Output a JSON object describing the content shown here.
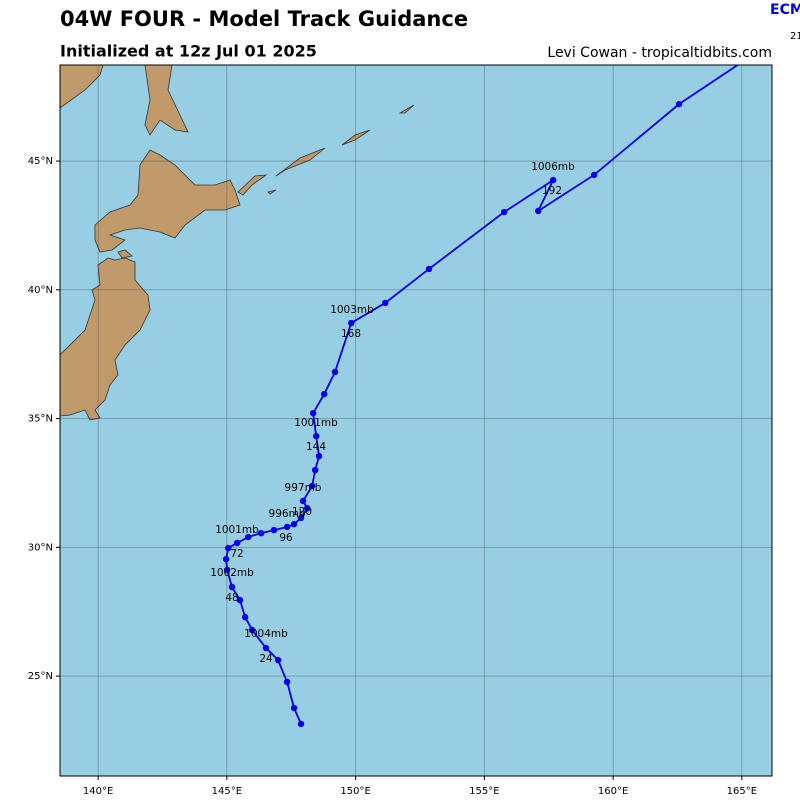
{
  "chart_data": {
    "type": "line",
    "title": "04W FOUR - Model Track Guidance",
    "subtitle": "Initialized at 12z Jul 01 2025",
    "credit": "Levi Cowan - tropicaltidbits.com",
    "model": "ECM",
    "model_note": "21",
    "xlim": [
      138.52,
      166.17
    ],
    "ylim": [
      21.12,
      48.73
    ],
    "xticks": [
      {
        "value": 140,
        "label": "140°E"
      },
      {
        "value": 145,
        "label": "145°E"
      },
      {
        "value": 150,
        "label": "150°E"
      },
      {
        "value": 155,
        "label": "155°E"
      },
      {
        "value": 160,
        "label": "160°E"
      },
      {
        "value": 165,
        "label": "165°E"
      }
    ],
    "yticks": [
      {
        "value": 25,
        "label": "25°N"
      },
      {
        "value": 30,
        "label": "30°N"
      },
      {
        "value": 35,
        "label": "35°N"
      },
      {
        "value": 40,
        "label": "40°N"
      },
      {
        "value": 45,
        "label": "45°N"
      }
    ],
    "grid": true,
    "ocean_color": "#97cee4",
    "land_color": "#c19a6b",
    "series": [
      {
        "name": "ECM",
        "color": "#0000ee",
        "x": [
          147.88,
          147.61,
          147.34,
          146.99,
          146.52,
          145.98,
          145.71,
          145.51,
          145.2,
          145.01,
          144.97,
          145.05,
          145.4,
          145.83,
          146.33,
          146.83,
          147.34,
          147.61,
          147.88,
          148.12,
          147.96,
          148.31,
          148.43,
          148.58,
          148.47,
          148.35,
          148.78,
          149.2,
          149.83,
          151.15,
          152.85,
          155.77,
          157.67,
          157.09,
          159.26,
          162.56,
          165.0
        ],
        "values": [
          23.14,
          23.76,
          24.77,
          25.62,
          26.09,
          26.79,
          27.29,
          27.95,
          28.46,
          29.12,
          29.54,
          29.97,
          30.17,
          30.4,
          30.55,
          30.67,
          30.79,
          30.9,
          31.14,
          31.52,
          31.8,
          32.38,
          33.0,
          33.54,
          34.32,
          35.21,
          35.95,
          36.81,
          38.71,
          39.49,
          40.81,
          43.02,
          44.26,
          43.06,
          44.46,
          47.21,
          48.84
        ]
      }
    ],
    "annotations": [
      "1006mb",
      "192",
      "1003mb",
      "168",
      "1001mb",
      "144",
      "997mb",
      "120",
      "996mb",
      "96",
      "1001mb",
      "72",
      "1002mb",
      "48",
      "1004mb",
      "24"
    ]
  }
}
